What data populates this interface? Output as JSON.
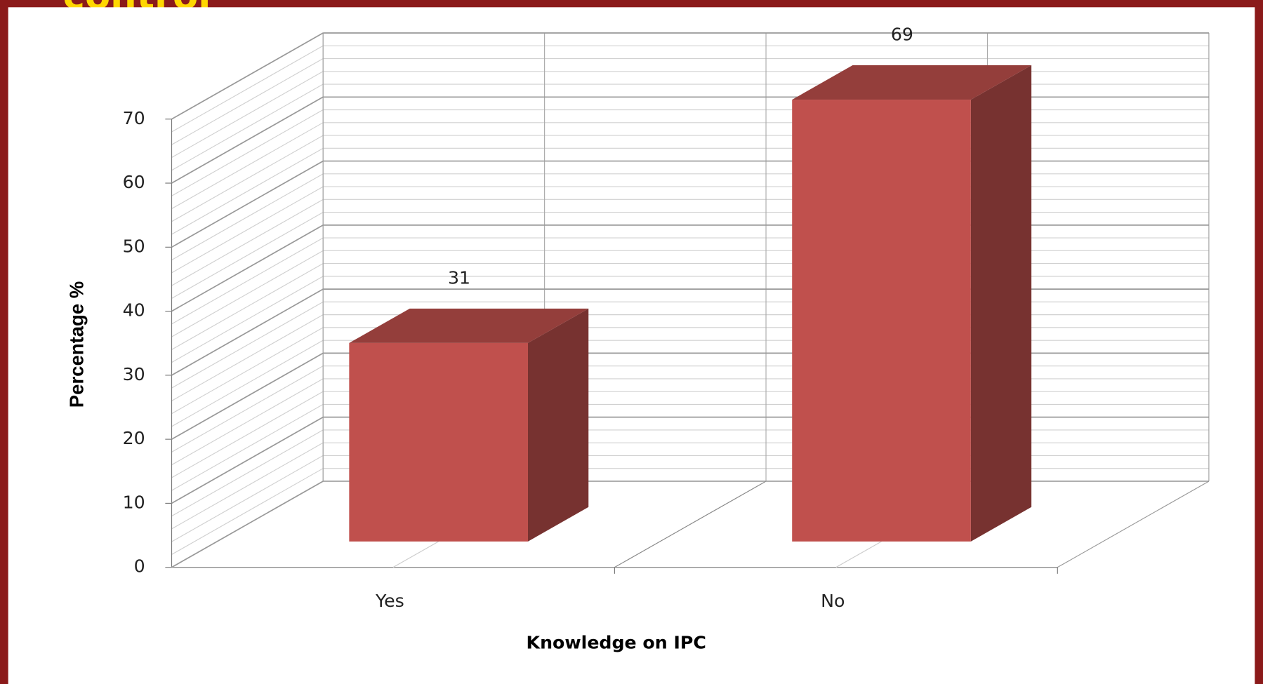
{
  "header": {
    "title": "control"
  },
  "chart_data": {
    "type": "bar",
    "categories": [
      "Yes",
      "No"
    ],
    "values": [
      31,
      69
    ],
    "color": "#c0504d",
    "ylim": [
      0,
      70
    ],
    "yticks": [
      0,
      10,
      20,
      30,
      40,
      50,
      60,
      70
    ],
    "ylabel": "Percentage %",
    "xlabel": "Knowledge on IPC",
    "grid": true
  }
}
